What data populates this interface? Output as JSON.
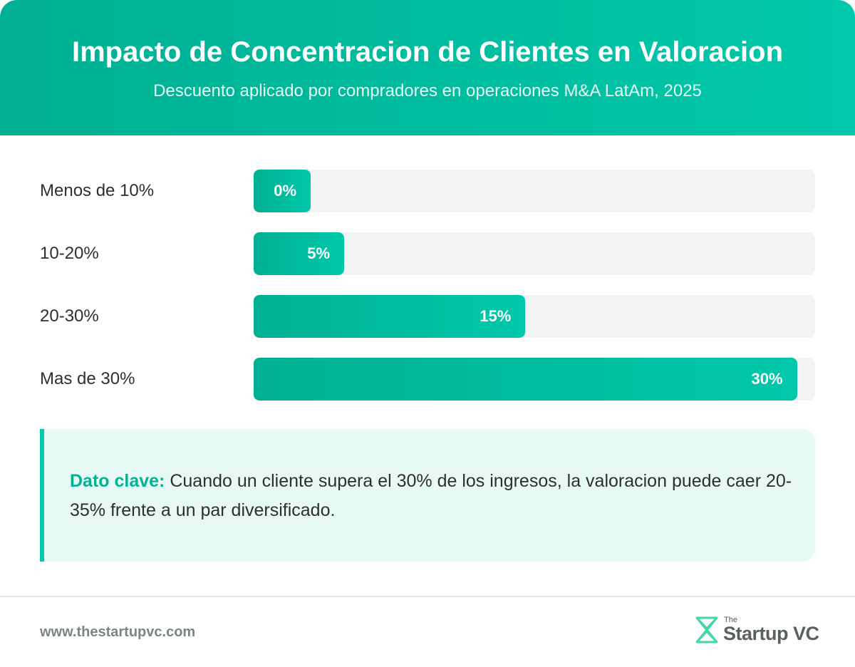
{
  "header": {
    "title": "Impacto de Concentracion de Clientes en Valoracion",
    "subtitle": "Descuento aplicado por compradores en operaciones M&A LatAm, 2025"
  },
  "chart_data": {
    "type": "bar",
    "orientation": "horizontal",
    "title": "Impacto de Concentracion de Clientes en Valoracion",
    "subtitle": "Descuento aplicado por compradores en operaciones M&A LatAm, 2025",
    "categories": [
      "Menos de 10%",
      "10-20%",
      "20-30%",
      "Mas de 30%"
    ],
    "values": [
      0,
      5,
      15,
      30
    ],
    "value_labels": [
      "0%",
      "5%",
      "15%",
      "30%"
    ],
    "xlim": [
      0,
      31
    ],
    "grid": false,
    "legend": "none"
  },
  "callout": {
    "key": "Dato clave:",
    "text": " Cuando un cliente supera el 30% de los ingresos, la valoracion puede caer 20-35% frente a un par diversificado."
  },
  "footer": {
    "url": "www.thestartupvc.com",
    "logo_the": "The",
    "logo_name": "Startup VC",
    "logo_icon": "startupvc-logo-icon"
  },
  "colors": {
    "accent_start": "#00b092",
    "accent_end": "#00c8aa",
    "track": "#f4f4f4",
    "callout_bg": "#e6f9f4"
  }
}
